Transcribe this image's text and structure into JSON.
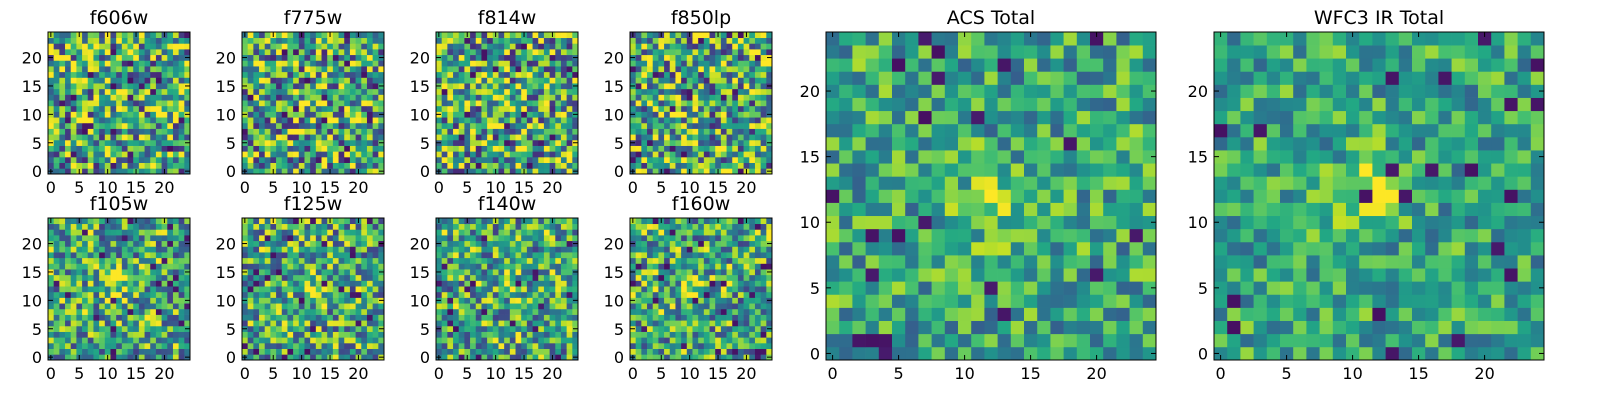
{
  "chart_data": {
    "type": "heatmap",
    "colormap": "viridis",
    "grid_size": 25,
    "xlim": [
      -0.5,
      24.5
    ],
    "ylim": [
      -0.5,
      24.5
    ],
    "panels": [
      {
        "id": "f606w",
        "title": "f606w",
        "xticks": [
          0,
          5,
          10,
          15,
          20
        ],
        "yticks": [
          0,
          5,
          10,
          15,
          20
        ],
        "source_x": 12.5,
        "source_y": 12.0,
        "source_strength": 0.08,
        "seed": 11,
        "contrast": 1.0
      },
      {
        "id": "f775w",
        "title": "f775w",
        "xticks": [
          0,
          5,
          10,
          15,
          20
        ],
        "yticks": [
          0,
          5,
          10,
          15,
          20
        ],
        "source_x": 11.5,
        "source_y": 12.5,
        "source_strength": 0.22,
        "seed": 23,
        "contrast": 1.0
      },
      {
        "id": "f814w",
        "title": "f814w",
        "xticks": [
          0,
          5,
          10,
          15,
          20
        ],
        "yticks": [
          0,
          5,
          10,
          15,
          20
        ],
        "source_x": 12.0,
        "source_y": 12.0,
        "source_strength": 0.25,
        "seed": 37,
        "contrast": 1.0
      },
      {
        "id": "f850lp",
        "title": "f850lp",
        "xticks": [
          0,
          5,
          10,
          15,
          20
        ],
        "yticks": [
          0,
          5,
          10,
          15,
          20
        ],
        "source_x": 9.0,
        "source_y": 6.0,
        "source_strength": 0.18,
        "seed": 41,
        "contrast": 1.0
      },
      {
        "id": "f105w",
        "title": "f105w",
        "xticks": [
          0,
          5,
          10,
          15,
          20
        ],
        "yticks": [
          0,
          5,
          10,
          15,
          20
        ],
        "source_x": 11.5,
        "source_y": 13.5,
        "source_strength": 0.35,
        "seed": 53,
        "contrast": 0.85
      },
      {
        "id": "f125w",
        "title": "f125w",
        "xticks": [
          0,
          5,
          10,
          15,
          20
        ],
        "yticks": [
          0,
          5,
          10,
          15,
          20
        ],
        "source_x": 12.0,
        "source_y": 13.0,
        "source_strength": 0.2,
        "seed": 67,
        "contrast": 0.85
      },
      {
        "id": "f140w",
        "title": "f140w",
        "xticks": [
          0,
          5,
          10,
          15,
          20
        ],
        "yticks": [
          0,
          5,
          10,
          15,
          20
        ],
        "source_x": 12.5,
        "source_y": 12.5,
        "source_strength": 0.2,
        "seed": 79,
        "contrast": 0.85
      },
      {
        "id": "f160w",
        "title": "f160w",
        "xticks": [
          0,
          5,
          10,
          15,
          20
        ],
        "yticks": [
          0,
          5,
          10,
          15,
          20
        ],
        "source_x": 11.0,
        "source_y": 12.0,
        "source_strength": 0.35,
        "seed": 83,
        "contrast": 0.85
      },
      {
        "id": "acs_total",
        "title": "ACS Total",
        "xticks": [
          0,
          5,
          10,
          15,
          20
        ],
        "yticks": [
          0,
          5,
          10,
          15,
          20
        ],
        "source_x": 12.0,
        "source_y": 11.5,
        "source_strength": 0.3,
        "seed": 97,
        "contrast": 0.6
      },
      {
        "id": "wfc3_ir_total",
        "title": "WFC3 IR Total",
        "xticks": [
          0,
          5,
          10,
          15,
          20
        ],
        "yticks": [
          0,
          5,
          10,
          15,
          20
        ],
        "source_x": 11.5,
        "source_y": 12.5,
        "source_strength": 0.45,
        "seed": 101,
        "contrast": 0.55
      }
    ]
  }
}
